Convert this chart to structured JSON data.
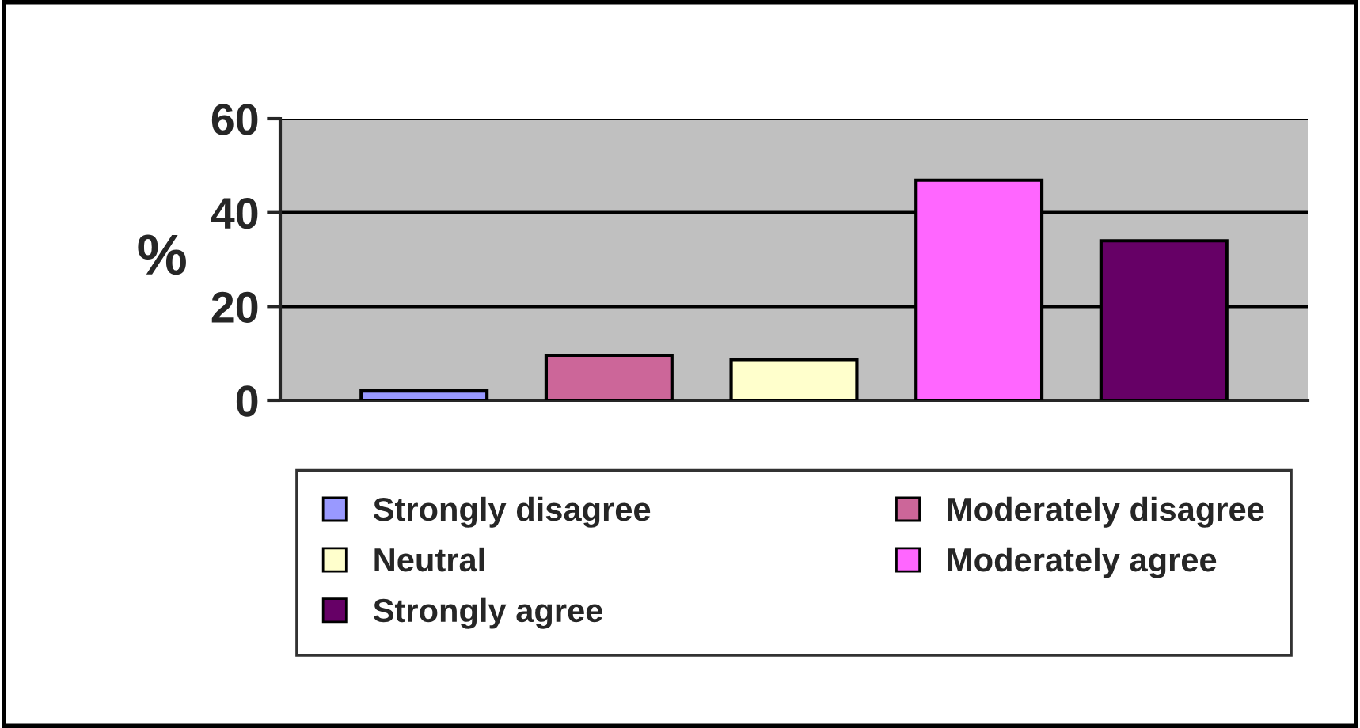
{
  "chart_data": {
    "type": "bar",
    "ylabel": "%",
    "categories": [
      null
    ],
    "series": [
      {
        "name": "Strongly disagree",
        "color": "#9999ff",
        "values": [
          2.0
        ]
      },
      {
        "name": "Moderately disagree",
        "color": "#cc6699",
        "values": [
          9.6
        ]
      },
      {
        "name": "Neutral",
        "color": "#ffffcc",
        "values": [
          8.7
        ]
      },
      {
        "name": "Moderately agree",
        "color": "#ff66ff",
        "values": [
          46.9
        ]
      },
      {
        "name": "Strongly agree",
        "color": "#660066",
        "values": [
          34.0
        ]
      }
    ],
    "ylim": [
      0,
      60
    ],
    "yticks": [
      0,
      20,
      40,
      60
    ],
    "grid": "y",
    "legend": "bottom",
    "tick_labels": "y"
  }
}
